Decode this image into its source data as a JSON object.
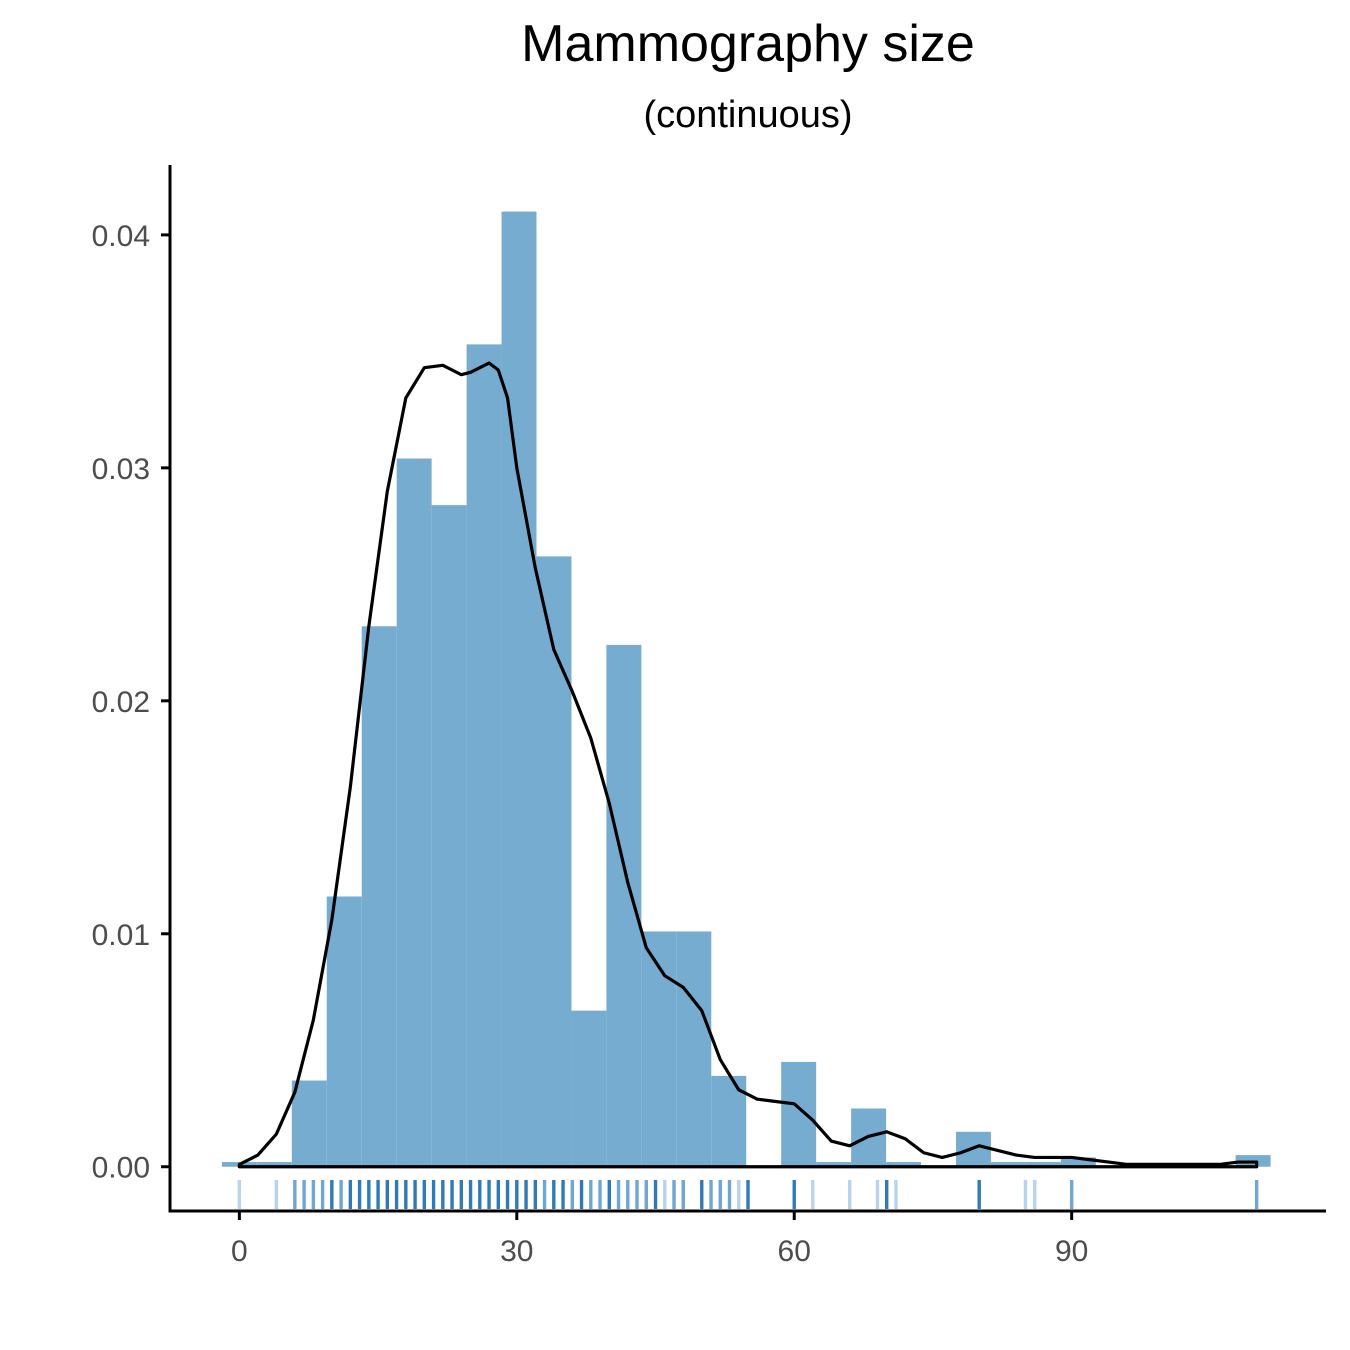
{
  "chart_data": {
    "type": "histogram",
    "title": "Mammography size",
    "subtitle": "(continuous)",
    "xlabel": "",
    "ylabel": "",
    "xlim": [
      -7.5,
      117.5
    ],
    "ylim": [
      -0.0019,
      0.043
    ],
    "x_ticks": [
      0,
      30,
      60,
      90
    ],
    "x_tick_labels": [
      "0",
      "30",
      "60",
      "90"
    ],
    "y_ticks": [
      0.0,
      0.01,
      0.02,
      0.03,
      0.04
    ],
    "y_tick_labels": [
      "0.00",
      "0.01",
      "0.02",
      "0.03",
      "0.04"
    ],
    "bin_width": 3.78,
    "bins": [
      {
        "x0": -1.89,
        "x1": 1.89,
        "density": 0.0002
      },
      {
        "x0": 1.89,
        "x1": 5.67,
        "density": 0.0002
      },
      {
        "x0": 5.67,
        "x1": 9.45,
        "density": 0.0037
      },
      {
        "x0": 9.45,
        "x1": 13.23,
        "density": 0.0116
      },
      {
        "x0": 13.23,
        "x1": 17.01,
        "density": 0.0232
      },
      {
        "x0": 17.01,
        "x1": 20.79,
        "density": 0.0304
      },
      {
        "x0": 20.79,
        "x1": 24.57,
        "density": 0.0284
      },
      {
        "x0": 24.57,
        "x1": 28.35,
        "density": 0.0353
      },
      {
        "x0": 28.35,
        "x1": 32.13,
        "density": 0.041
      },
      {
        "x0": 32.13,
        "x1": 35.91,
        "density": 0.0262
      },
      {
        "x0": 35.91,
        "x1": 39.69,
        "density": 0.0067
      },
      {
        "x0": 39.69,
        "x1": 43.47,
        "density": 0.0224
      },
      {
        "x0": 43.47,
        "x1": 47.25,
        "density": 0.0101
      },
      {
        "x0": 47.25,
        "x1": 51.03,
        "density": 0.0101
      },
      {
        "x0": 51.03,
        "x1": 54.81,
        "density": 0.0039
      },
      {
        "x0": 58.59,
        "x1": 62.37,
        "density": 0.0045
      },
      {
        "x0": 62.37,
        "x1": 66.15,
        "density": 0.0002
      },
      {
        "x0": 66.15,
        "x1": 69.93,
        "density": 0.0025
      },
      {
        "x0": 69.93,
        "x1": 73.71,
        "density": 0.0002
      },
      {
        "x0": 77.49,
        "x1": 81.27,
        "density": 0.0015
      },
      {
        "x0": 81.27,
        "x1": 85.05,
        "density": 0.0002
      },
      {
        "x0": 85.05,
        "x1": 88.83,
        "density": 0.0002
      },
      {
        "x0": 88.83,
        "x1": 92.61,
        "density": 0.0004
      },
      {
        "x0": 107.73,
        "x1": 111.51,
        "density": 0.0005
      }
    ],
    "density_curve": {
      "x": [
        0,
        2,
        4,
        6,
        8,
        10,
        12,
        14,
        16,
        18,
        20,
        22,
        23,
        24,
        25,
        26,
        27,
        28,
        29,
        30,
        32,
        34,
        36,
        38,
        40,
        42,
        44,
        46,
        48,
        50,
        52,
        54,
        56,
        58,
        60,
        62,
        64,
        66,
        68,
        70,
        72,
        74,
        76,
        78,
        80,
        82,
        84,
        86,
        88,
        90,
        92,
        94,
        96,
        98,
        100,
        102,
        104,
        106,
        108,
        110
      ],
      "y": [
        0.0001,
        0.0005,
        0.0014,
        0.0032,
        0.0063,
        0.0106,
        0.0163,
        0.0232,
        0.029,
        0.033,
        0.0343,
        0.0344,
        0.0342,
        0.034,
        0.0341,
        0.0343,
        0.0345,
        0.0342,
        0.033,
        0.03,
        0.0257,
        0.0222,
        0.0204,
        0.0184,
        0.0156,
        0.0122,
        0.0094,
        0.0082,
        0.0077,
        0.0067,
        0.0046,
        0.0033,
        0.0029,
        0.0028,
        0.0027,
        0.002,
        0.0011,
        0.0009,
        0.0013,
        0.0015,
        0.0012,
        0.0006,
        0.0004,
        0.0006,
        0.0009,
        0.0007,
        0.0005,
        0.0004,
        0.0004,
        0.0004,
        0.0003,
        0.0002,
        0.0001,
        0.0001,
        0.0001,
        0.0001,
        0.0001,
        0.0001,
        0.0002,
        0.0002
      ]
    },
    "rug": [
      {
        "x": 0,
        "shade": "light"
      },
      {
        "x": 4,
        "shade": "light"
      },
      {
        "x": 6,
        "shade": "mid"
      },
      {
        "x": 7,
        "shade": "mid"
      },
      {
        "x": 8,
        "shade": "mid"
      },
      {
        "x": 9,
        "shade": "mid"
      },
      {
        "x": 10,
        "shade": "dark"
      },
      {
        "x": 11,
        "shade": "mid"
      },
      {
        "x": 12,
        "shade": "dark"
      },
      {
        "x": 13,
        "shade": "dark"
      },
      {
        "x": 14,
        "shade": "dark"
      },
      {
        "x": 15,
        "shade": "dark"
      },
      {
        "x": 16,
        "shade": "dark"
      },
      {
        "x": 17,
        "shade": "dark"
      },
      {
        "x": 18,
        "shade": "dark"
      },
      {
        "x": 19,
        "shade": "dark"
      },
      {
        "x": 20,
        "shade": "dark"
      },
      {
        "x": 21,
        "shade": "dark"
      },
      {
        "x": 22,
        "shade": "dark"
      },
      {
        "x": 23,
        "shade": "dark"
      },
      {
        "x": 24,
        "shade": "dark"
      },
      {
        "x": 25,
        "shade": "dark"
      },
      {
        "x": 26,
        "shade": "dark"
      },
      {
        "x": 27,
        "shade": "dark"
      },
      {
        "x": 28,
        "shade": "dark"
      },
      {
        "x": 29,
        "shade": "dark"
      },
      {
        "x": 30,
        "shade": "dark"
      },
      {
        "x": 31,
        "shade": "dark"
      },
      {
        "x": 32,
        "shade": "dark"
      },
      {
        "x": 33,
        "shade": "mid"
      },
      {
        "x": 34,
        "shade": "dark"
      },
      {
        "x": 35,
        "shade": "dark"
      },
      {
        "x": 36,
        "shade": "mid"
      },
      {
        "x": 37,
        "shade": "dark"
      },
      {
        "x": 38,
        "shade": "mid"
      },
      {
        "x": 39,
        "shade": "mid"
      },
      {
        "x": 40,
        "shade": "dark"
      },
      {
        "x": 41,
        "shade": "mid"
      },
      {
        "x": 42,
        "shade": "mid"
      },
      {
        "x": 43,
        "shade": "mid"
      },
      {
        "x": 44,
        "shade": "mid"
      },
      {
        "x": 45,
        "shade": "dark"
      },
      {
        "x": 46,
        "shade": "light"
      },
      {
        "x": 47,
        "shade": "mid"
      },
      {
        "x": 48,
        "shade": "mid"
      },
      {
        "x": 50,
        "shade": "dark"
      },
      {
        "x": 51,
        "shade": "mid"
      },
      {
        "x": 52,
        "shade": "mid"
      },
      {
        "x": 53,
        "shade": "mid"
      },
      {
        "x": 54,
        "shade": "light"
      },
      {
        "x": 55,
        "shade": "dark"
      },
      {
        "x": 60,
        "shade": "dark"
      },
      {
        "x": 62,
        "shade": "light"
      },
      {
        "x": 66,
        "shade": "light"
      },
      {
        "x": 69,
        "shade": "light"
      },
      {
        "x": 70,
        "shade": "dark"
      },
      {
        "x": 71,
        "shade": "light"
      },
      {
        "x": 80,
        "shade": "dark"
      },
      {
        "x": 85,
        "shade": "light"
      },
      {
        "x": 86,
        "shade": "light"
      },
      {
        "x": 90,
        "shade": "mid"
      },
      {
        "x": 110,
        "shade": "mid"
      }
    ],
    "colors": {
      "bar_fill": "#77acd1",
      "curve": "#000000",
      "axis": "#000000",
      "tick_label": "#4d4d4d",
      "rug_light": "#b9d4ea",
      "rug_mid": "#6fa6d2",
      "rug_dark": "#2f7ab7"
    },
    "grid": false,
    "legend": "none"
  }
}
